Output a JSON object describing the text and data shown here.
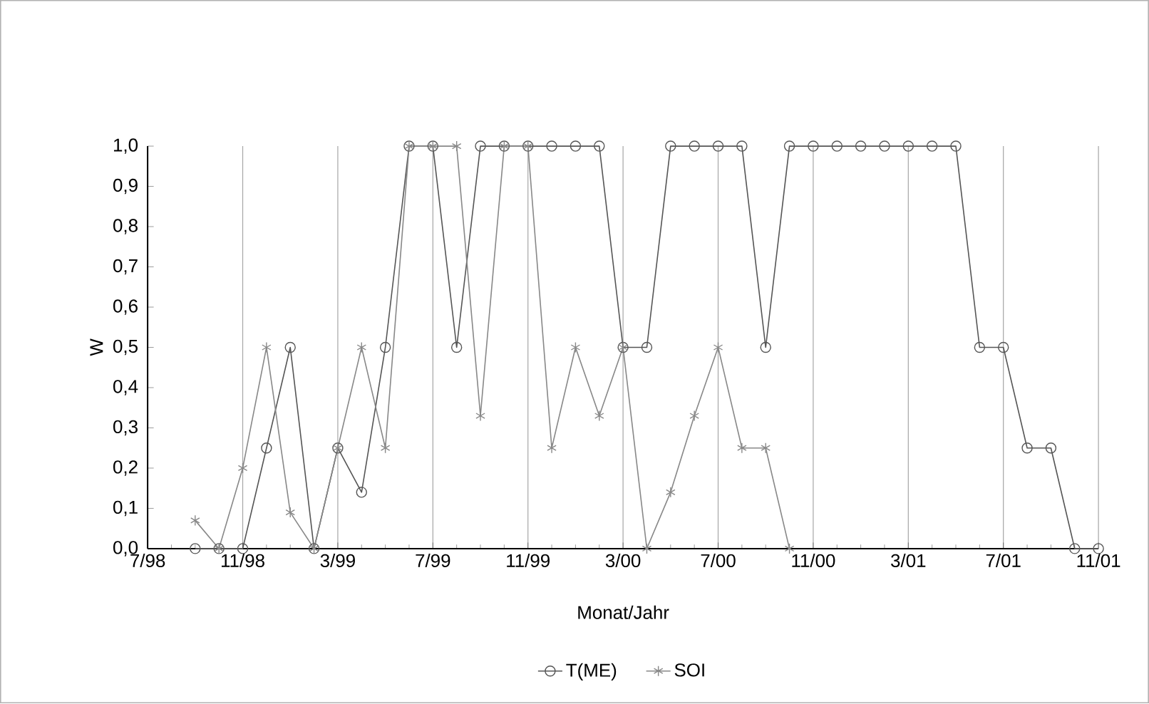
{
  "chart_data": {
    "type": "line",
    "xlabel": "Monat/Jahr",
    "ylabel": "W",
    "xlim": [
      "1998-07",
      "2001-11"
    ],
    "xticks": [
      {
        "value": "1998-07",
        "label": "7/98"
      },
      {
        "value": "1998-11",
        "label": "11/98"
      },
      {
        "value": "1999-03",
        "label": "3/99"
      },
      {
        "value": "1999-07",
        "label": "7/99"
      },
      {
        "value": "1999-11",
        "label": "11/99"
      },
      {
        "value": "2000-03",
        "label": "3/00"
      },
      {
        "value": "2000-07",
        "label": "7/00"
      },
      {
        "value": "2000-11",
        "label": "11/00"
      },
      {
        "value": "2001-03",
        "label": "3/01"
      },
      {
        "value": "2001-07",
        "label": "7/01"
      },
      {
        "value": "2001-11",
        "label": "11/01"
      }
    ],
    "ylim": [
      0,
      1
    ],
    "yticks": [
      {
        "value": 0,
        "label": "0,0"
      },
      {
        "value": 0.1,
        "label": "0,1"
      },
      {
        "value": 0.2,
        "label": "0,2"
      },
      {
        "value": 0.3,
        "label": "0,3"
      },
      {
        "value": 0.4,
        "label": "0,4"
      },
      {
        "value": 0.5,
        "label": "0,5"
      },
      {
        "value": 0.6,
        "label": "0,6"
      },
      {
        "value": 0.7,
        "label": "0,7"
      },
      {
        "value": 0.8,
        "label": "0,8"
      },
      {
        "value": 0.9,
        "label": "0,9"
      },
      {
        "value": 1,
        "label": "1,0"
      }
    ],
    "grid": "x",
    "legend": "bottom",
    "line_style": "solid",
    "series": [
      {
        "name": "T(ME)",
        "color": "#555555",
        "marker": "circle",
        "x": [
          "1998-09",
          "1998-10",
          "1998-11",
          "1998-12",
          "1999-01",
          "1999-02",
          "1999-03",
          "1999-04",
          "1999-05",
          "1999-06",
          "1999-07",
          "1999-08",
          "1999-09",
          "1999-10",
          "1999-11",
          "1999-12",
          "2000-01",
          "2000-02",
          "2000-03",
          "2000-04",
          "2000-05",
          "2000-06",
          "2000-07",
          "2000-08",
          "2000-09",
          "2000-10",
          "2000-11",
          "2000-12",
          "2001-01",
          "2001-02",
          "2001-03",
          "2001-04",
          "2001-05",
          "2001-06",
          "2001-07",
          "2001-08",
          "2001-09",
          "2001-10",
          "2001-11"
        ],
        "values": [
          0,
          0,
          0,
          0.25,
          0.5,
          0,
          0.25,
          0.14,
          0.5,
          1,
          1,
          0.5,
          1,
          1,
          1,
          1,
          1,
          1,
          0.5,
          0.5,
          1,
          1,
          1,
          1,
          0.5,
          1,
          1,
          1,
          1,
          1,
          1,
          1,
          1,
          0.5,
          0.5,
          0.25,
          0.25,
          0,
          0
        ]
      },
      {
        "name": "SOI",
        "color": "#888888",
        "marker": "cross",
        "x": [
          "1998-09",
          "1998-10",
          "1998-11",
          "1998-12",
          "1999-01",
          "1999-02",
          "1999-03",
          "1999-04",
          "1999-05",
          "1999-06",
          "1999-07",
          "1999-08",
          "1999-09",
          "1999-10",
          "1999-11",
          "1999-12",
          "2000-01",
          "2000-02",
          "2000-03",
          "2000-04",
          "2000-05",
          "2000-06",
          "2000-07",
          "2000-08",
          "2000-09",
          "2000-10"
        ],
        "values": [
          0.07,
          0,
          0.2,
          0.5,
          0.09,
          0,
          0.25,
          0.5,
          0.25,
          1,
          1,
          1,
          0.33,
          1,
          1,
          0.25,
          0.5,
          0.33,
          0.5,
          0,
          0.14,
          0.33,
          0.5,
          0.25,
          0.25,
          0
        ]
      }
    ]
  }
}
